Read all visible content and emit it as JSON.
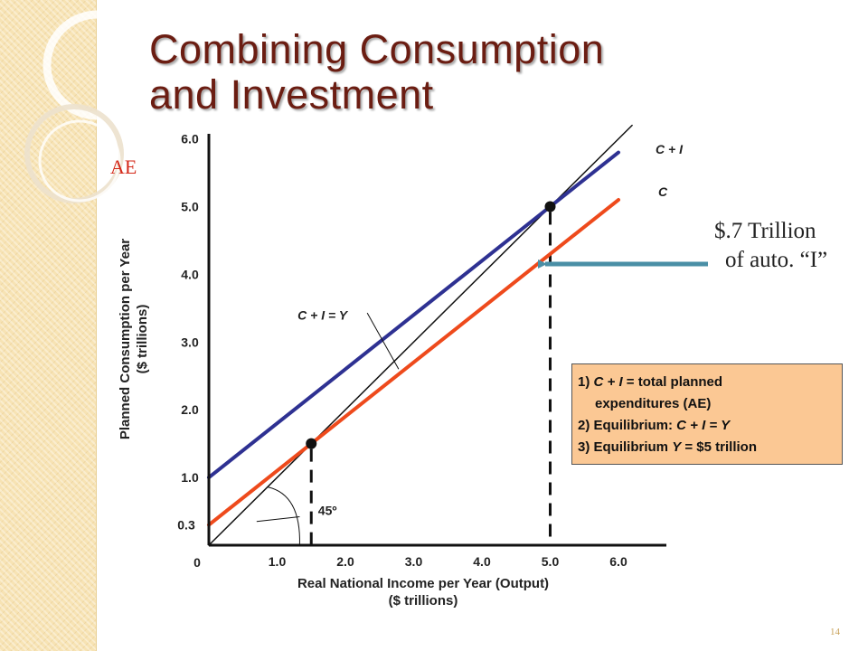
{
  "slide": {
    "title_line1": "Combining Consumption",
    "title_line2": "and Investment",
    "ae_label": "AE",
    "annotation_line1": "$.7 Trillion",
    "annotation_line2": "of auto. “I”",
    "slide_number": "14"
  },
  "notes": {
    "n1_prefix": "1) ",
    "n1_term": "C + I",
    "n1_rest_a": " = total planned",
    "n1_rest_b": "expenditures (AE)",
    "n2_prefix": "2) Equilibrium: ",
    "n2_term": "C + I = Y",
    "n3_prefix": "3) Equilibrium ",
    "n3_term": "Y",
    "n3_rest": " = $5 trillion"
  },
  "chart_data": {
    "type": "line",
    "xlabel_line1": "Real National Income per Year (Output)",
    "xlabel_line2": "($ trillions)",
    "ylabel_line1": "Planned Consumption per Year",
    "ylabel_line2": "($ trillions)",
    "xlim": [
      0,
      6.3
    ],
    "ylim": [
      0,
      6.3
    ],
    "x_ticks": [
      "1.0",
      "2.0",
      "3.0",
      "4.0",
      "5.0",
      "6.0"
    ],
    "y_ticks": [
      "1.0",
      "2.0",
      "3.0",
      "4.0",
      "5.0",
      "6.0"
    ],
    "origin_label": "0",
    "extra_y_tick": {
      "value": 0.3,
      "label": "0.3"
    },
    "angle_label": "45º",
    "series": [
      {
        "name": "C + I = Y",
        "x": [
          0,
          6.2
        ],
        "y": [
          0,
          6.2
        ],
        "color": "#111111"
      },
      {
        "name": "C + I",
        "x": [
          0,
          6.0
        ],
        "y": [
          1.0,
          5.8
        ],
        "color": "#2e3192"
      },
      {
        "name": "C",
        "x": [
          0,
          6.0
        ],
        "y": [
          0.3,
          5.1
        ],
        "color": "#ee4a1c"
      }
    ],
    "equilibrium_points": [
      {
        "x": 1.5,
        "y": 1.5
      },
      {
        "x": 5.0,
        "y": 5.0
      }
    ],
    "colors": {
      "arrow": "#4a8fa6",
      "box_fill": "#fbc894",
      "title": "#6b1d12",
      "ae_label": "#d42a1a"
    }
  }
}
